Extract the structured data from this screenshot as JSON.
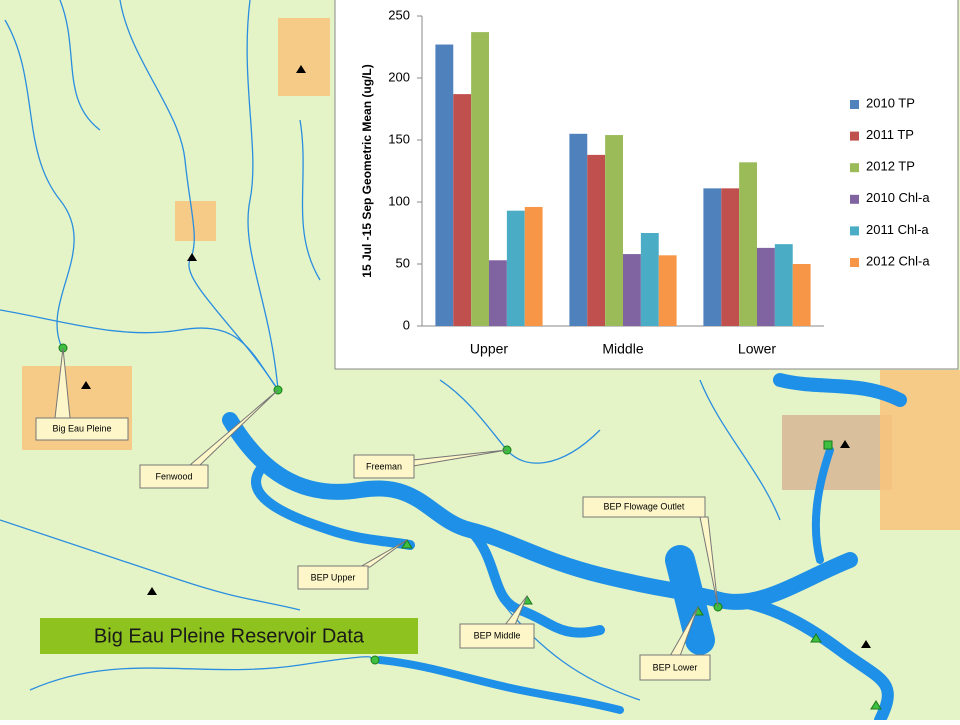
{
  "chart_data": {
    "type": "bar",
    "y_label": "15 Jul -15 Sep Geometric Mean (ug/L)",
    "categories": [
      "Upper",
      "Middle",
      "Lower"
    ],
    "series": [
      {
        "name": "2010 TP",
        "color": "#4f81bd",
        "values": [
          227,
          155,
          111
        ]
      },
      {
        "name": "2011 TP",
        "color": "#c0504d",
        "values": [
          187,
          138,
          111
        ]
      },
      {
        "name": "2012 TP",
        "color": "#9bbb59",
        "values": [
          237,
          154,
          132
        ]
      },
      {
        "name": "2010 Chl-a",
        "color": "#8064a2",
        "values": [
          53,
          58,
          63
        ]
      },
      {
        "name": "2011 Chl-a",
        "color": "#4bacc6",
        "values": [
          93,
          75,
          66
        ]
      },
      {
        "name": "2012 Chl-a",
        "color": "#f79646",
        "values": [
          96,
          57,
          50
        ]
      }
    ],
    "ylim": [
      0,
      250
    ],
    "yticks": [
      0,
      50,
      100,
      150,
      200,
      250
    ]
  },
  "map": {
    "labels": [
      "Big Eau Pleine",
      "Fenwood",
      "Freeman",
      "BEP Upper",
      "BEP Flowage Outlet",
      "BEP Middle",
      "BEP Lower"
    ]
  },
  "banner": "Big Eau Pleine Reservoir Data"
}
